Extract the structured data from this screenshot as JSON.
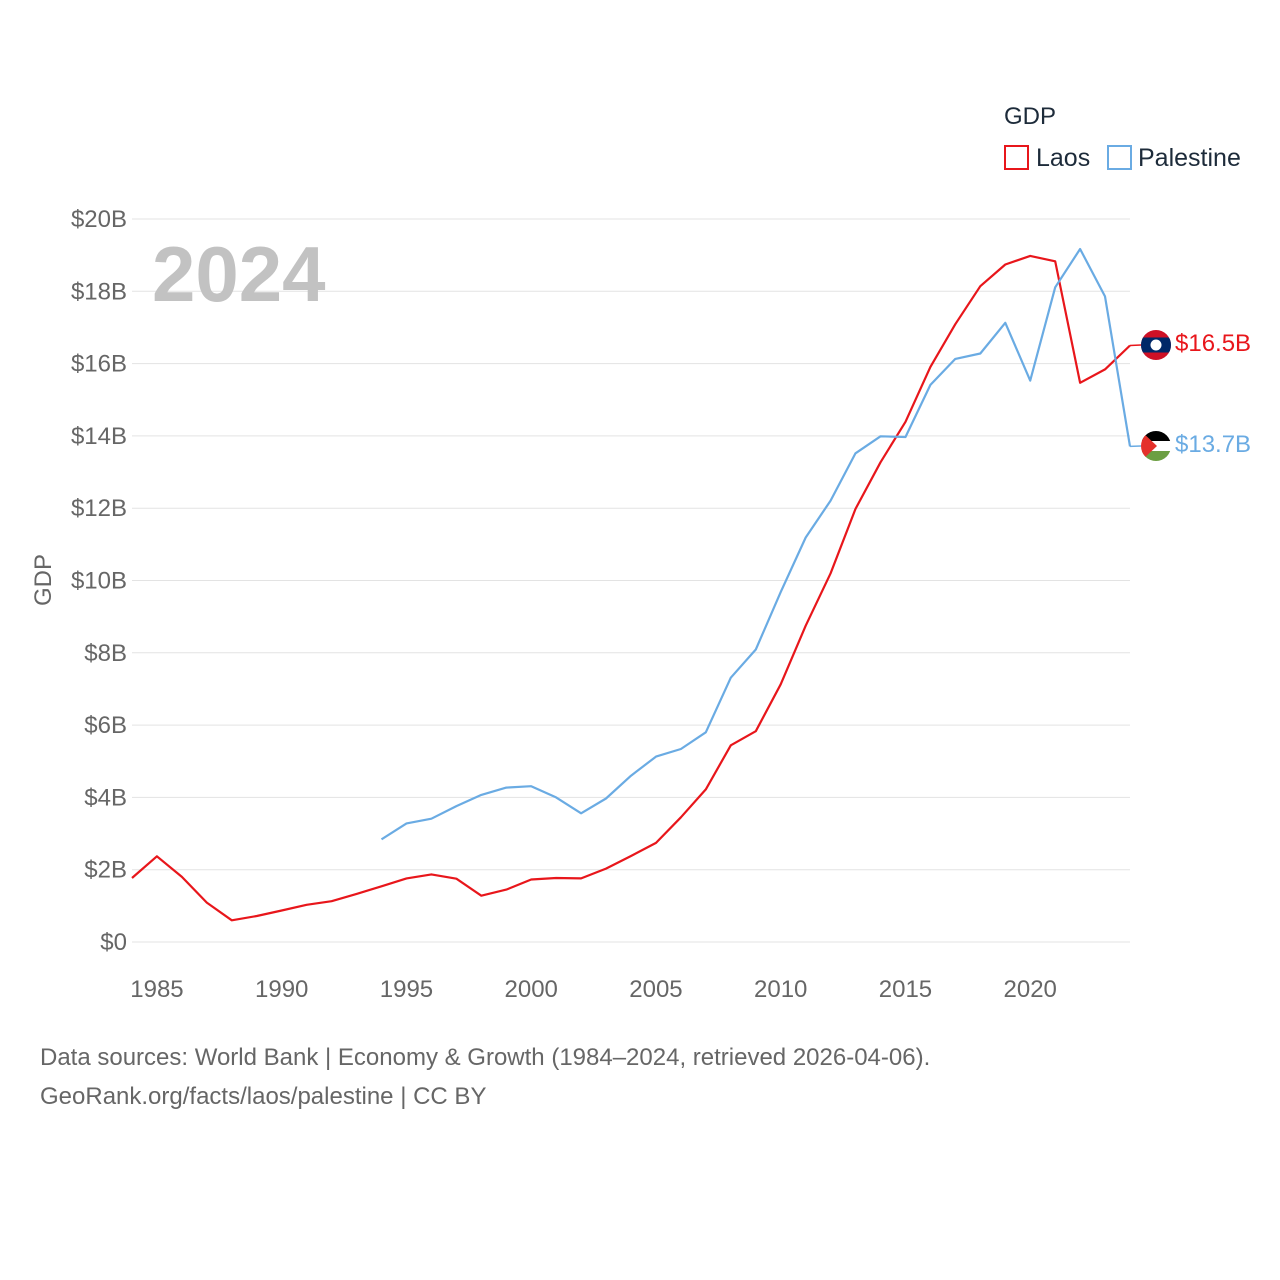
{
  "chart_data": {
    "type": "line",
    "title": "GDP",
    "ylabel": "GDP",
    "xlabel": "",
    "year_watermark": "2024",
    "ylim": [
      0,
      20
    ],
    "xlim": [
      1984,
      2024
    ],
    "y_ticks": [
      0,
      2,
      4,
      6,
      8,
      10,
      12,
      14,
      16,
      18,
      20
    ],
    "y_tick_labels": [
      "$0",
      "$2B",
      "$4B",
      "$6B",
      "$8B",
      "$10B",
      "$12B",
      "$14B",
      "$16B",
      "$18B",
      "$20B"
    ],
    "x_ticks": [
      1985,
      1990,
      1995,
      2000,
      2005,
      2010,
      2015,
      2020
    ],
    "x_tick_labels": [
      "1985",
      "1990",
      "1995",
      "2000",
      "2005",
      "2010",
      "2015",
      "2020"
    ],
    "grid": true,
    "legend_position": "top-right",
    "series": [
      {
        "name": "Laos",
        "color": "#e8161b",
        "end_label": "$16.5B",
        "flag": "laos-flag",
        "x": [
          1984,
          1985,
          1986,
          1987,
          1988,
          1989,
          1990,
          1991,
          1992,
          1993,
          1994,
          1995,
          1996,
          1997,
          1998,
          1999,
          2000,
          2001,
          2002,
          2003,
          2004,
          2005,
          2006,
          2007,
          2008,
          2009,
          2010,
          2011,
          2012,
          2013,
          2014,
          2015,
          2016,
          2017,
          2018,
          2019,
          2020,
          2021,
          2022,
          2023,
          2024
        ],
        "values": [
          1.77,
          2.37,
          1.8,
          1.09,
          0.6,
          0.72,
          0.87,
          1.03,
          1.13,
          1.33,
          1.54,
          1.76,
          1.87,
          1.75,
          1.28,
          1.45,
          1.73,
          1.77,
          1.76,
          2.03,
          2.38,
          2.74,
          3.45,
          4.22,
          5.44,
          5.83,
          7.13,
          8.75,
          10.2,
          11.98,
          13.27,
          14.39,
          15.91,
          17.09,
          18.14,
          18.74,
          18.98,
          18.83,
          15.47,
          15.84,
          16.5
        ]
      },
      {
        "name": "Palestine",
        "color": "#6aabe3",
        "end_label": "$13.7B",
        "flag": "palestine-flag",
        "x": [
          1994,
          1995,
          1996,
          1997,
          1998,
          1999,
          2000,
          2001,
          2002,
          2003,
          2004,
          2005,
          2006,
          2007,
          2008,
          2009,
          2010,
          2011,
          2012,
          2013,
          2014,
          2015,
          2016,
          2017,
          2018,
          2019,
          2020,
          2021,
          2022,
          2023,
          2024
        ],
        "values": [
          2.84,
          3.28,
          3.41,
          3.76,
          4.07,
          4.27,
          4.31,
          4.0,
          3.56,
          3.97,
          4.6,
          5.13,
          5.34,
          5.8,
          7.31,
          8.09,
          9.68,
          11.19,
          12.21,
          13.52,
          13.99,
          13.97,
          15.41,
          16.13,
          16.28,
          17.13,
          15.53,
          18.11,
          19.17,
          17.86,
          13.71
        ]
      }
    ]
  },
  "footer": {
    "line1": "Data sources: World Bank | Economy & Growth (1984–2024, retrieved 2026-04-06).",
    "line2": "GeoRank.org/facts/laos/palestine | CC BY"
  }
}
